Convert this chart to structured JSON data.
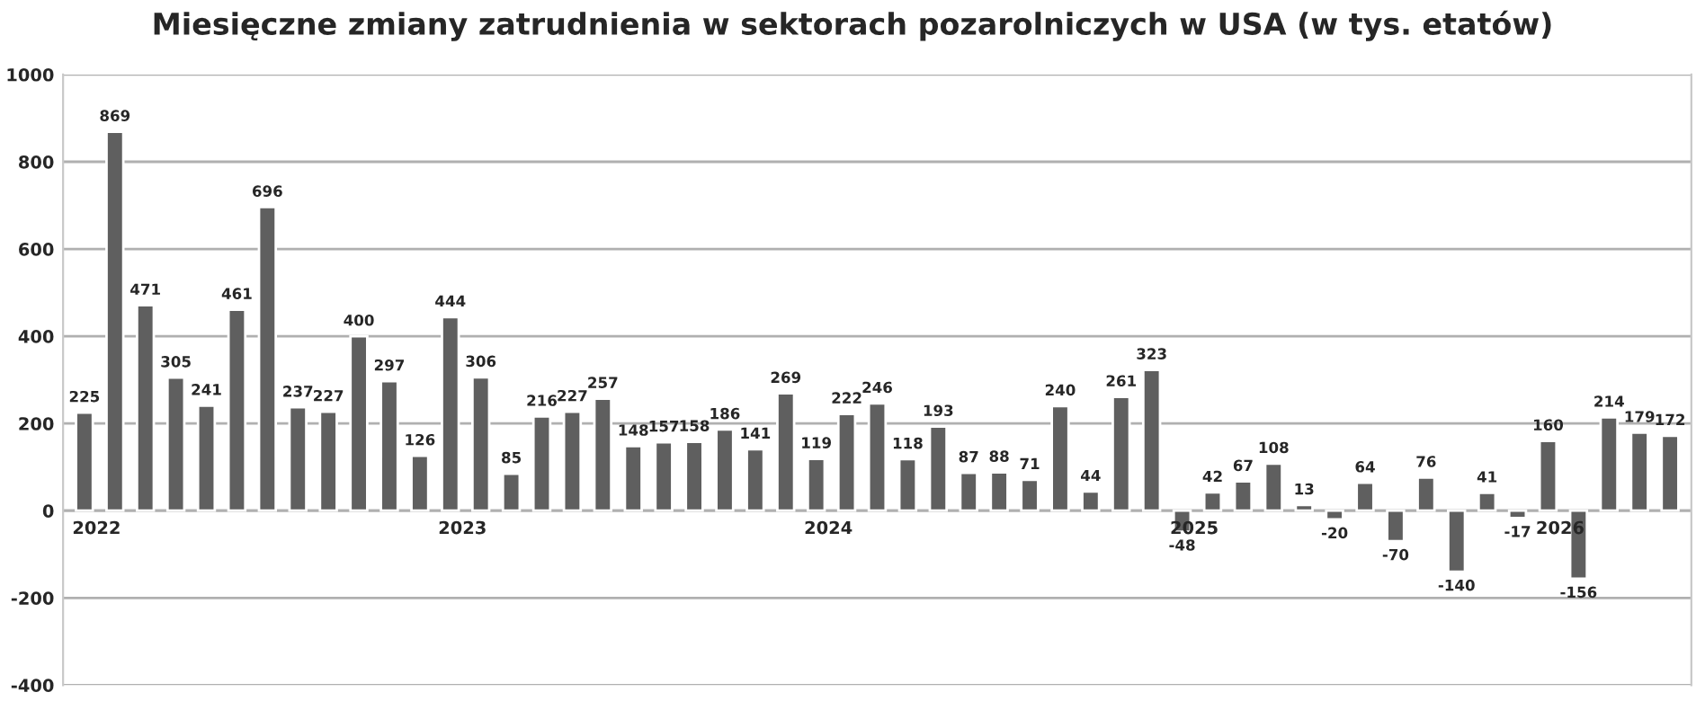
{
  "chart_data": {
    "type": "bar",
    "title": "Miesięczne zmiany zatrudnienia w sektorach pozarolniczych w USA (w tys. etatów)",
    "categories": [
      "2022",
      null,
      null,
      null,
      null,
      null,
      null,
      null,
      null,
      null,
      null,
      null,
      "2023",
      null,
      null,
      null,
      null,
      null,
      null,
      null,
      null,
      null,
      null,
      null,
      "2024",
      null,
      null,
      null,
      null,
      null,
      null,
      null,
      null,
      null,
      null,
      null,
      "2025",
      null,
      null,
      null,
      null,
      null,
      null,
      null,
      null,
      null,
      null,
      null,
      "2026",
      null,
      null,
      null,
      null
    ],
    "values": [
      225,
      869,
      471,
      305,
      241,
      461,
      696,
      237,
      227,
      400,
      297,
      126,
      444,
      306,
      85,
      216,
      227,
      257,
      148,
      157,
      158,
      186,
      141,
      269,
      119,
      222,
      246,
      118,
      193,
      87,
      88,
      71,
      240,
      44,
      261,
      323,
      -48,
      42,
      67,
      108,
      13,
      -20,
      64,
      -70,
      76,
      -140,
      41,
      -17,
      160,
      -156,
      214,
      179,
      172
    ],
    "color": "#5f5f5f",
    "ylim": [
      -400,
      1000
    ],
    "yticks": [
      -400,
      -200,
      0,
      200,
      400,
      600,
      800,
      1000
    ],
    "grid": "y",
    "data_labels": true
  }
}
